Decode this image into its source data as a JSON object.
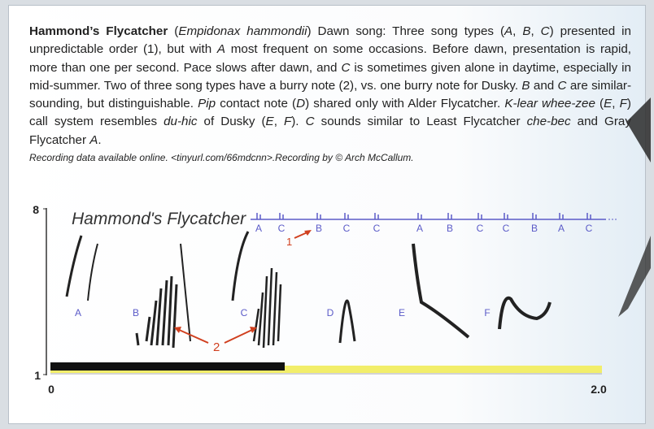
{
  "caption": {
    "segments": [
      {
        "text": "Hammond’s Flycatcher",
        "style": "bold"
      },
      {
        "text": " (",
        "style": "normal"
      },
      {
        "text": "Empidonax hammondii",
        "style": "italic"
      },
      {
        "text": ") Dawn song: Three song types (",
        "style": "normal"
      },
      {
        "text": "A",
        "style": "italic"
      },
      {
        "text": ", ",
        "style": "normal"
      },
      {
        "text": "B",
        "style": "italic"
      },
      {
        "text": ", ",
        "style": "normal"
      },
      {
        "text": "C",
        "style": "italic"
      },
      {
        "text": ") presented in unpredictable order (1), but with ",
        "style": "normal"
      },
      {
        "text": "A",
        "style": "italic"
      },
      {
        "text": " most frequent on some occasions. Before dawn, presentation is rapid, more than one per second. Pace slows after dawn, and ",
        "style": "normal"
      },
      {
        "text": "C",
        "style": "italic"
      },
      {
        "text": " is sometimes given alone in daytime, especially in mid-summer. Two of three song types have a burry note (2), vs. one burry note for Dusky. ",
        "style": "normal"
      },
      {
        "text": "B",
        "style": "italic"
      },
      {
        "text": " and ",
        "style": "normal"
      },
      {
        "text": "C",
        "style": "italic"
      },
      {
        "text": " are similar-sounding, but distinguishable. ",
        "style": "normal"
      },
      {
        "text": "Pip",
        "style": "italic"
      },
      {
        "text": " contact note (",
        "style": "normal"
      },
      {
        "text": "D",
        "style": "italic"
      },
      {
        "text": ") shared only with Alder Flycatcher. ",
        "style": "normal"
      },
      {
        "text": "K-lear whee-zee",
        "style": "italic"
      },
      {
        "text": " (",
        "style": "normal"
      },
      {
        "text": "E",
        "style": "italic"
      },
      {
        "text": ", ",
        "style": "normal"
      },
      {
        "text": "F",
        "style": "italic"
      },
      {
        "text": ") call system resembles ",
        "style": "normal"
      },
      {
        "text": "du-hic",
        "style": "italic"
      },
      {
        "text": " of Dusky (",
        "style": "normal"
      },
      {
        "text": "E",
        "style": "italic"
      },
      {
        "text": ", ",
        "style": "normal"
      },
      {
        "text": "F",
        "style": "italic"
      },
      {
        "text": "). ",
        "style": "normal"
      },
      {
        "text": "C",
        "style": "italic"
      },
      {
        "text": " sounds similar to Least Flycatcher ",
        "style": "normal"
      },
      {
        "text": "che-bec",
        "style": "italic"
      },
      {
        "text": " and Gray Flycatcher ",
        "style": "normal"
      },
      {
        "text": "A",
        "style": "italic"
      },
      {
        "text": ".",
        "style": "normal"
      }
    ],
    "credit": "Recording data available online. <tinyurl.com/66mdcnn>.Recording by © Arch McCallum."
  },
  "figure": {
    "title": "Hammond's Flycatcher",
    "sequence": [
      "A",
      "C",
      "B",
      "C",
      "C",
      "A",
      "B",
      "C",
      "C",
      "B",
      "A",
      "C"
    ],
    "order_marker": "1",
    "burry_marker": "2",
    "song_labels": [
      "A",
      "B",
      "C",
      "D",
      "E",
      "F"
    ],
    "y_top": "8",
    "y_bottom": "1",
    "x_start": "0",
    "x_end": "2.0"
  }
}
